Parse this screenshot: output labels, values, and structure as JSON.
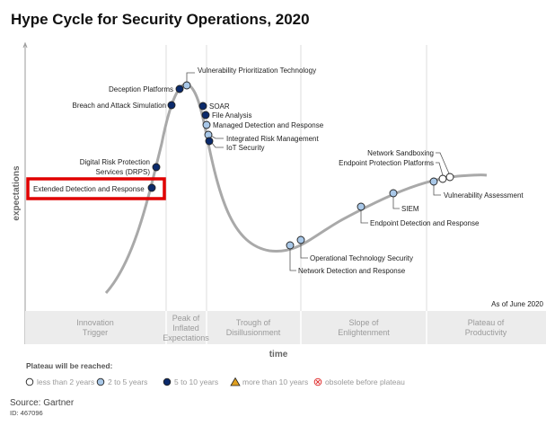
{
  "chart_data": {
    "type": "hype-cycle",
    "title": "Hype Cycle for Security Operations, 2020",
    "ylabel": "expectations",
    "xlabel": "time",
    "as_of": "As of June 2020",
    "phases": [
      "Innovation Trigger",
      "Peak of Inflated Expectations",
      "Trough of Disillusionment",
      "Slope of Enlightenment",
      "Plateau of Productivity"
    ],
    "phase_lines": [
      [
        "Innovation",
        "Trigger"
      ],
      [
        "Peak of",
        "Inflated",
        "Expectations"
      ],
      [
        "Trough of",
        "Disillusionment"
      ],
      [
        "Slope of",
        "Enlightenment"
      ],
      [
        "Plateau of",
        "Productivity"
      ]
    ],
    "technologies": [
      {
        "name": "Vulnerability Prioritization Technology",
        "plateau": "2 to 5 years",
        "phase": "Peak of Inflated Expectations"
      },
      {
        "name": "Deception Platforms",
        "plateau": "5 to 10 years",
        "phase": "Peak of Inflated Expectations"
      },
      {
        "name": "Breach and Attack Simulation",
        "plateau": "5 to 10 years",
        "phase": "Peak of Inflated Expectations"
      },
      {
        "name": "SOAR",
        "plateau": "5 to 10 years",
        "phase": "Trough of Disillusionment"
      },
      {
        "name": "File Analysis",
        "plateau": "5 to 10 years",
        "phase": "Trough of Disillusionment"
      },
      {
        "name": "Managed Detection and Response",
        "plateau": "2 to 5 years",
        "phase": "Trough of Disillusionment"
      },
      {
        "name": "Integrated Risk Management",
        "plateau": "2 to 5 years",
        "phase": "Trough of Disillusionment"
      },
      {
        "name": "IoT Security",
        "plateau": "5 to 10 years",
        "phase": "Trough of Disillusionment"
      },
      {
        "name": "Digital Risk Protection Services (DRPS)",
        "plateau": "5 to 10 years",
        "phase": "Innovation Trigger"
      },
      {
        "name": "Extended Detection and Response",
        "plateau": "5 to 10 years",
        "phase": "Innovation Trigger",
        "highlighted": true
      },
      {
        "name": "Network Detection and Response",
        "plateau": "2 to 5 years",
        "phase": "Trough of Disillusionment"
      },
      {
        "name": "Operational Technology Security",
        "plateau": "2 to 5 years",
        "phase": "Slope of Enlightenment"
      },
      {
        "name": "Endpoint Detection and Response",
        "plateau": "2 to 5 years",
        "phase": "Slope of Enlightenment"
      },
      {
        "name": "SIEM",
        "plateau": "2 to 5 years",
        "phase": "Slope of Enlightenment"
      },
      {
        "name": "Vulnerability Assessment",
        "plateau": "2 to 5 years",
        "phase": "Slope of Enlightenment"
      },
      {
        "name": "Endpoint Protection Platforms",
        "plateau": "less than 2 years",
        "phase": "Slope of Enlightenment"
      },
      {
        "name": "Network Sandboxing",
        "plateau": "less than 2 years",
        "phase": "Slope of Enlightenment"
      }
    ],
    "legend": {
      "title": "Plateau will be reached:",
      "items": [
        {
          "label": "less than 2 years",
          "icon": "open-circle",
          "color": "#ffffff"
        },
        {
          "label": "2 to 5 years",
          "icon": "light-circle",
          "color": "#a9c8e8"
        },
        {
          "label": "5 to 10 years",
          "icon": "dark-circle",
          "color": "#0b2a6b"
        },
        {
          "label": "more than 10 years",
          "icon": "triangle",
          "color": "#e0a020"
        },
        {
          "label": "obsolete before plateau",
          "icon": "x-circle",
          "color": "#e03030"
        }
      ]
    },
    "highlight_color": "#e00000"
  },
  "source": "Source: Gartner",
  "id": "ID: 467096"
}
